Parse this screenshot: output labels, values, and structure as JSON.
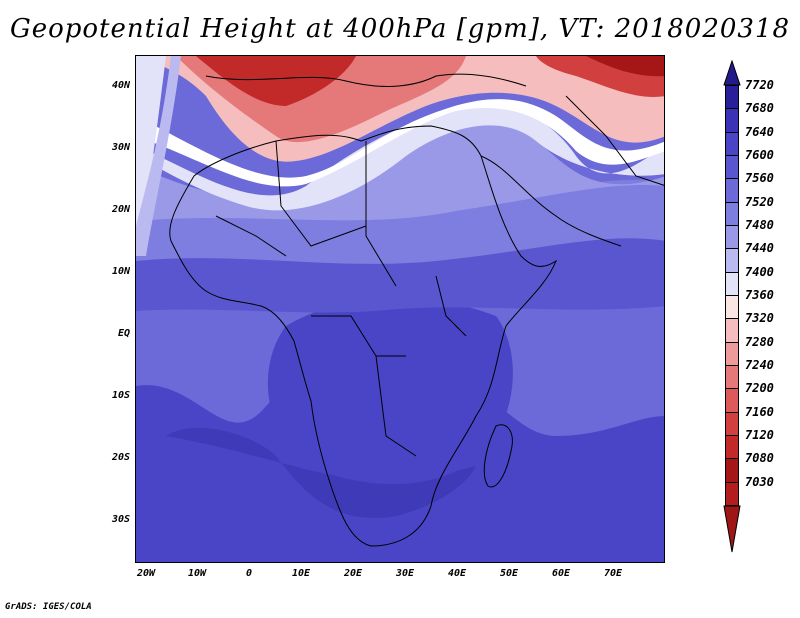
{
  "title": "Geopotential Height at 400hPa [gpm], VT: 2018020318",
  "lat_labels": [
    "40N",
    "30N",
    "20N",
    "10N",
    "EQ",
    "10S",
    "20S",
    "30S"
  ],
  "lon_labels": [
    "20W",
    "10W",
    "0",
    "10E",
    "20E",
    "30E",
    "40E",
    "50E",
    "60E",
    "70E"
  ],
  "colorbar": {
    "labels": [
      "7720",
      "7680",
      "7640",
      "7600",
      "7560",
      "7520",
      "7480",
      "7440",
      "7400",
      "7360",
      "7320",
      "7280",
      "7240",
      "7200",
      "7160",
      "7120",
      "7080",
      "7030"
    ],
    "colors": [
      "#2a1f9a",
      "#3a33b8",
      "#4a45c6",
      "#5a56cf",
      "#6b6ad8",
      "#7e7de0",
      "#9a99e8",
      "#bbbaf0",
      "#e2e2f8",
      "#fbe4e4",
      "#f5bdbd",
      "#ee9b9b",
      "#e57878",
      "#dc5a5a",
      "#d23f3f",
      "#c22a2a",
      "#a51717",
      "#b41d1d"
    ],
    "top_arrow_color": "#231a8c",
    "bottom_arrow_color": "#9e1616"
  },
  "credit": "GrADS: IGES/COLA"
}
